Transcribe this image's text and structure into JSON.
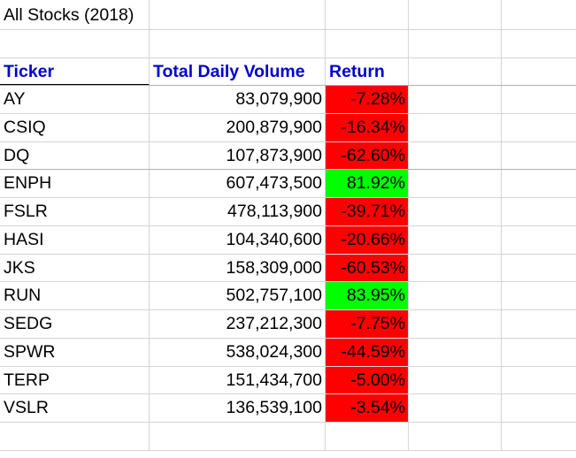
{
  "sheet": {
    "title": "All Stocks (2018)",
    "headers": {
      "ticker": "Ticker",
      "volume": "Total Daily Volume",
      "return": "Return"
    },
    "colors": {
      "negative": "#ff0000",
      "positive": "#00ff00",
      "header_text": "#0000d0"
    },
    "rows": [
      {
        "ticker": "AY",
        "volume": "83,079,900",
        "return": "-7.28%",
        "sign": "negative"
      },
      {
        "ticker": "CSIQ",
        "volume": "200,879,900",
        "return": "-16.34%",
        "sign": "negative"
      },
      {
        "ticker": "DQ",
        "volume": "107,873,900",
        "return": "-62.60%",
        "sign": "negative"
      },
      {
        "ticker": "ENPH",
        "volume": "607,473,500",
        "return": "81.92%",
        "sign": "positive"
      },
      {
        "ticker": "FSLR",
        "volume": "478,113,900",
        "return": "-39.71%",
        "sign": "negative"
      },
      {
        "ticker": "HASI",
        "volume": "104,340,600",
        "return": "-20.66%",
        "sign": "negative"
      },
      {
        "ticker": "JKS",
        "volume": "158,309,000",
        "return": "-60.53%",
        "sign": "negative"
      },
      {
        "ticker": "RUN",
        "volume": "502,757,100",
        "return": "83.95%",
        "sign": "positive"
      },
      {
        "ticker": "SEDG",
        "volume": "237,212,300",
        "return": "-7.75%",
        "sign": "negative"
      },
      {
        "ticker": "SPWR",
        "volume": "538,024,300",
        "return": "-44.59%",
        "sign": "negative"
      },
      {
        "ticker": "TERP",
        "volume": "151,434,700",
        "return": "-5.00%",
        "sign": "negative"
      },
      {
        "ticker": "VSLR",
        "volume": "136,539,100",
        "return": "-3.54%",
        "sign": "negative"
      }
    ]
  }
}
